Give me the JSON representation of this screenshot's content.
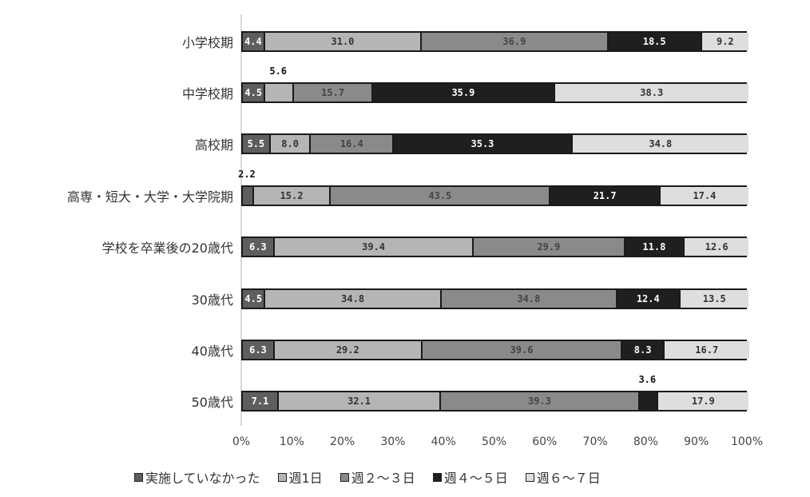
{
  "chart_data": {
    "type": "bar",
    "orientation": "horizontal",
    "stacked": true,
    "percent": true,
    "title": "",
    "xlabel": "",
    "ylabel": "",
    "xlim": [
      0,
      100
    ],
    "x_ticks": [
      "0%",
      "10%",
      "20%",
      "30%",
      "40%",
      "50%",
      "60%",
      "70%",
      "80%",
      "90%",
      "100%"
    ],
    "grid": false,
    "legend_position": "bottom",
    "categories": [
      "小学校期",
      "中学校期",
      "高校期",
      "高専・短大・大学・大学院期",
      "学校を卒業後の20歳代",
      "30歳代",
      "40歳代",
      "50歳代"
    ],
    "series": [
      {
        "name": "実施していなかった",
        "color": "#5e5e5e",
        "values": [
          4.4,
          4.5,
          5.5,
          2.2,
          6.3,
          4.5,
          6.3,
          7.1
        ]
      },
      {
        "name": "週1日",
        "color": "#b5b5b5",
        "values": [
          31.0,
          5.6,
          8.0,
          15.2,
          39.4,
          34.8,
          29.2,
          32.1
        ]
      },
      {
        "name": "週２～３日",
        "color": "#8a8a8a",
        "values": [
          36.9,
          15.7,
          16.4,
          43.5,
          29.9,
          34.8,
          39.6,
          39.3
        ]
      },
      {
        "name": "週４～５日",
        "color": "#1f1f1f",
        "values": [
          18.5,
          35.9,
          35.3,
          21.7,
          11.8,
          12.4,
          8.3,
          3.6
        ]
      },
      {
        "name": "週６～７日",
        "color": "#dedede",
        "values": [
          9.2,
          38.3,
          34.8,
          17.4,
          12.6,
          13.5,
          16.7,
          17.9
        ]
      }
    ],
    "value_labels": [
      [
        "4.4",
        "31.0",
        "36.9",
        "18.5",
        "9.2"
      ],
      [
        "4.5",
        "5.6",
        "15.7",
        "35.9",
        "38.3"
      ],
      [
        "5.5",
        "8.0",
        "16.4",
        "35.3",
        "34.8"
      ],
      [
        "2.2",
        "15.2",
        "43.5",
        "21.7",
        "17.4"
      ],
      [
        "6.3",
        "39.4",
        "29.9",
        "11.8",
        "12.6"
      ],
      [
        "4.5",
        "34.8",
        "34.8",
        "12.4",
        "13.5"
      ],
      [
        "6.3",
        "29.2",
        "39.6",
        "8.3",
        "16.7"
      ],
      [
        "7.1",
        "32.1",
        "39.3",
        "3.6",
        "17.9"
      ]
    ],
    "callouts": [
      {
        "row": 1,
        "series": 1,
        "text": "5.6"
      },
      {
        "row": 3,
        "series": 0,
        "text": "2.2"
      },
      {
        "row": 7,
        "series": 3,
        "text": "3.6"
      }
    ]
  },
  "legend": {
    "items": [
      "実施していなかった",
      "週1日",
      "週２～３日",
      "週４～５日",
      "週６～７日"
    ]
  }
}
